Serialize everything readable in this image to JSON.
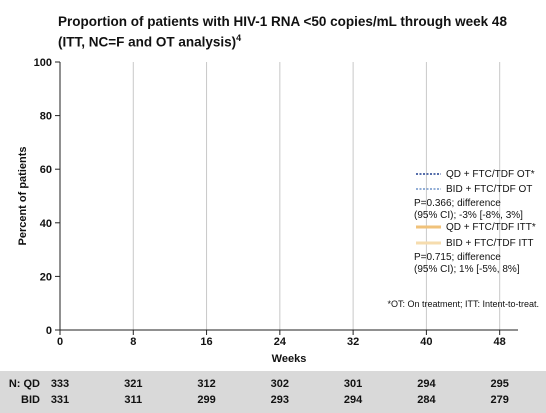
{
  "chart_data": {
    "type": "line",
    "title": "Proportion of patients with HIV-1 RNA <50 copies/mL through week 48",
    "subtitle": "(ITT, NC=F and OT analysis)",
    "title_superscript": "4",
    "xlabel": "Weeks",
    "ylabel": "Percent of patients",
    "xlim": [
      0,
      50
    ],
    "ylim": [
      0,
      100
    ],
    "x_ticks": [
      0,
      8,
      16,
      24,
      32,
      40,
      48
    ],
    "y_ticks": [
      0,
      20,
      40,
      60,
      80,
      100
    ],
    "grid": "vertical",
    "legend_position": "right",
    "series": [
      {
        "name": "QD + FTC/TDF OT*",
        "color": "#1f3f8f",
        "style": "dotted",
        "values": []
      },
      {
        "name": "BID + FTC/TDF OT",
        "color": "#6f93c8",
        "style": "dotted",
        "values": []
      },
      {
        "name": "QD + FTC/TDF ITT*",
        "color": "#f0c27a",
        "style": "solid",
        "values": []
      },
      {
        "name": "BID + FTC/TDF ITT",
        "color": "#f6dcae",
        "style": "solid",
        "values": []
      }
    ],
    "annotations": [
      "P=0.366; difference",
      "(95% CI); -3% [-8%, 3%]",
      "P=0.715; difference",
      "(95% CI); 1% [-5%, 8%]"
    ],
    "footnote": "*OT: On treatment; ITT: Intent-to-treat.",
    "n_at_risk": {
      "label": "N:",
      "rows": [
        {
          "name": "QD",
          "values": [
            333,
            321,
            312,
            302,
            301,
            294,
            295
          ]
        },
        {
          "name": "BID",
          "values": [
            331,
            311,
            299,
            293,
            294,
            284,
            279
          ]
        }
      ]
    }
  }
}
